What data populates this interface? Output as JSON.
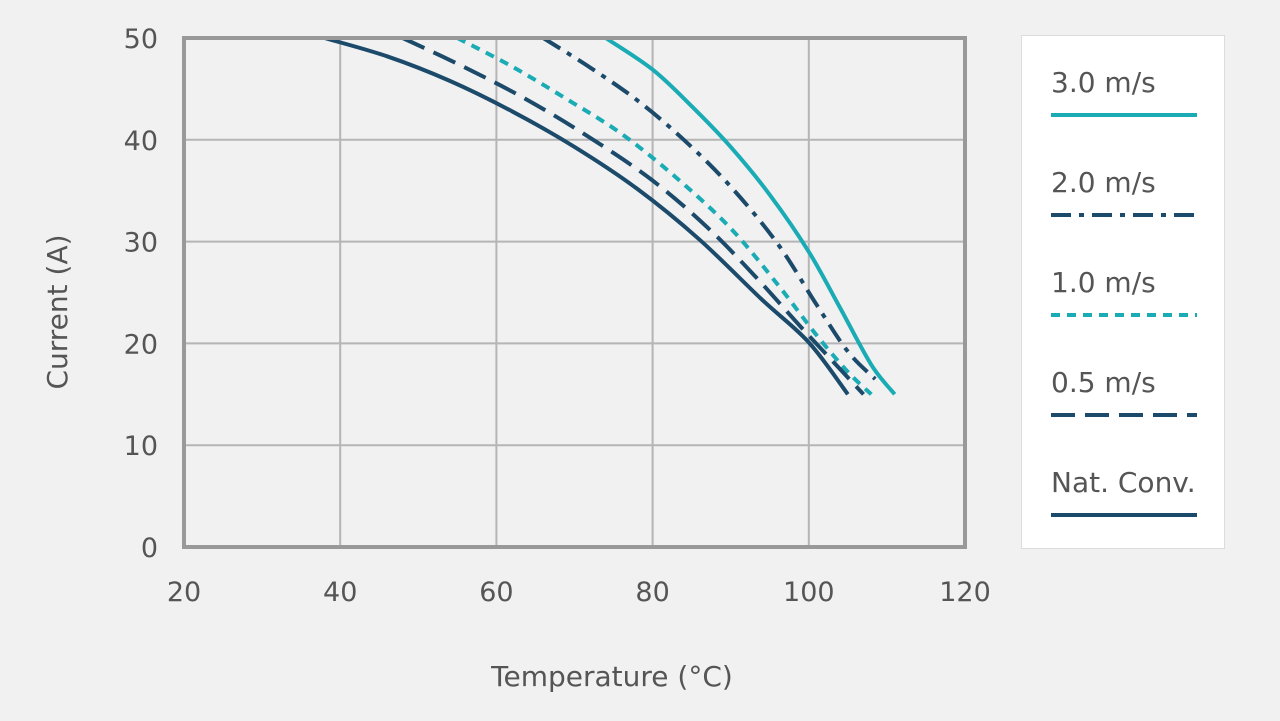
{
  "chart_data": {
    "type": "line",
    "xlabel": "Temperature (°C)",
    "ylabel": "Current (A)",
    "xlim": [
      20,
      120
    ],
    "ylim": [
      0,
      50
    ],
    "xticks": [
      20,
      40,
      60,
      80,
      100,
      120
    ],
    "yticks": [
      0,
      10,
      20,
      30,
      40,
      50
    ],
    "grid": true,
    "legend_position": "right",
    "series": [
      {
        "name": "3.0 m/s",
        "color": "#1aabb5",
        "dash": "solid",
        "x": [
          74,
          80,
          85,
          90,
          95,
          100,
          104,
          108,
          111
        ],
        "y": [
          50,
          46.9,
          43.3,
          39.3,
          34.6,
          29,
          23.5,
          17.9,
          15
        ]
      },
      {
        "name": "2.0 m/s",
        "color": "#1c4a6b",
        "dash": "dashdot",
        "x": [
          66,
          72,
          78,
          84,
          90,
          96,
          101,
          105,
          108.5
        ],
        "y": [
          50,
          47.1,
          43.9,
          40,
          35.4,
          29.8,
          23.8,
          19.2,
          16.5
        ]
      },
      {
        "name": "1.0 m/s",
        "color": "#1aabb5",
        "dash": "dashed-short",
        "x": [
          55,
          62,
          69,
          76,
          83,
          90,
          96,
          101,
          105,
          108
        ],
        "y": [
          50,
          47.2,
          44,
          40.6,
          36.3,
          31.3,
          25.8,
          20.8,
          17.2,
          15
        ]
      },
      {
        "name": "0.5 m/s",
        "color": "#1c4a6b",
        "dash": "dashed-long",
        "x": [
          48,
          56,
          64,
          72,
          80,
          87,
          93,
          99,
          103,
          107
        ],
        "y": [
          50,
          47.1,
          43.9,
          40.2,
          36,
          31.4,
          26.7,
          21.6,
          18.3,
          15
        ]
      },
      {
        "name": "Nat. Conv.",
        "color": "#1c4a6b",
        "dash": "solid",
        "x": [
          38,
          46,
          54,
          62,
          70,
          78,
          86,
          94,
          100,
          105
        ],
        "y": [
          50,
          48.2,
          45.8,
          42.8,
          39.3,
          35.2,
          30.2,
          24.3,
          20.1,
          15
        ]
      }
    ]
  }
}
